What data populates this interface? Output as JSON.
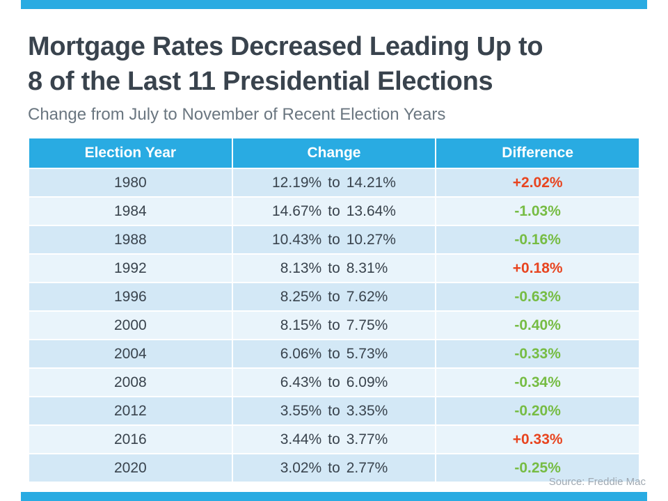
{
  "colors": {
    "accent": "#29ABE2",
    "increase": "#E8441F",
    "decrease": "#76BC43",
    "row_odd": "#D3E8F6",
    "row_even": "#E9F4FB"
  },
  "title_lines": [
    "Mortgage Rates Decreased Leading Up to",
    "8 of the Last 11 Presidential Elections"
  ],
  "subtitle": "Change from July to November of Recent Election Years",
  "source": "Source: Freddie Mac",
  "table": {
    "headers": [
      "Election Year",
      "Change",
      "Difference"
    ],
    "to_word": "to",
    "rows": [
      {
        "year": "1980",
        "from": "12.19%",
        "to": "14.21%",
        "diff": "+2.02%",
        "direction": "up"
      },
      {
        "year": "1984",
        "from": "14.67%",
        "to": "13.64%",
        "diff": "-1.03%",
        "direction": "down"
      },
      {
        "year": "1988",
        "from": "10.43%",
        "to": "10.27%",
        "diff": "-0.16%",
        "direction": "down"
      },
      {
        "year": "1992",
        "from": "8.13%",
        "to": "8.31%",
        "diff": "+0.18%",
        "direction": "up"
      },
      {
        "year": "1996",
        "from": "8.25%",
        "to": "7.62%",
        "diff": "-0.63%",
        "direction": "down"
      },
      {
        "year": "2000",
        "from": "8.15%",
        "to": "7.75%",
        "diff": "-0.40%",
        "direction": "down"
      },
      {
        "year": "2004",
        "from": "6.06%",
        "to": "5.73%",
        "diff": "-0.33%",
        "direction": "down"
      },
      {
        "year": "2008",
        "from": "6.43%",
        "to": "6.09%",
        "diff": "-0.34%",
        "direction": "down"
      },
      {
        "year": "2012",
        "from": "3.55%",
        "to": "3.35%",
        "diff": "-0.20%",
        "direction": "down"
      },
      {
        "year": "2016",
        "from": "3.44%",
        "to": "3.77%",
        "diff": "+0.33%",
        "direction": "up"
      },
      {
        "year": "2020",
        "from": "3.02%",
        "to": "2.77%",
        "diff": "-0.25%",
        "direction": "down"
      }
    ]
  },
  "chart_data": {
    "type": "table",
    "title": "Mortgage Rates Decreased Leading Up to 8 of the Last 11 Presidential Elections",
    "subtitle": "Change from July to November of Recent Election Years",
    "columns": [
      "Election Year",
      "Change",
      "Difference"
    ],
    "rows": [
      [
        "1980",
        "12.19% to 14.21%",
        "+2.02%"
      ],
      [
        "1984",
        "14.67% to 13.64%",
        "-1.03%"
      ],
      [
        "1988",
        "10.43% to 10.27%",
        "-0.16%"
      ],
      [
        "1992",
        "8.13% to 8.31%",
        "+0.18%"
      ],
      [
        "1996",
        "8.25% to 7.62%",
        "-0.63%"
      ],
      [
        "2000",
        "8.15% to 7.75%",
        "-0.40%"
      ],
      [
        "2004",
        "6.06% to 5.73%",
        "-0.33%"
      ],
      [
        "2008",
        "6.43% to 6.09%",
        "-0.34%"
      ],
      [
        "2012",
        "3.55% to 3.35%",
        "-0.20%"
      ],
      [
        "2016",
        "3.44% to 3.77%",
        "+0.33%"
      ],
      [
        "2020",
        "3.02% to 2.77%",
        "-0.25%"
      ]
    ],
    "source": "Source: Freddie Mac"
  }
}
